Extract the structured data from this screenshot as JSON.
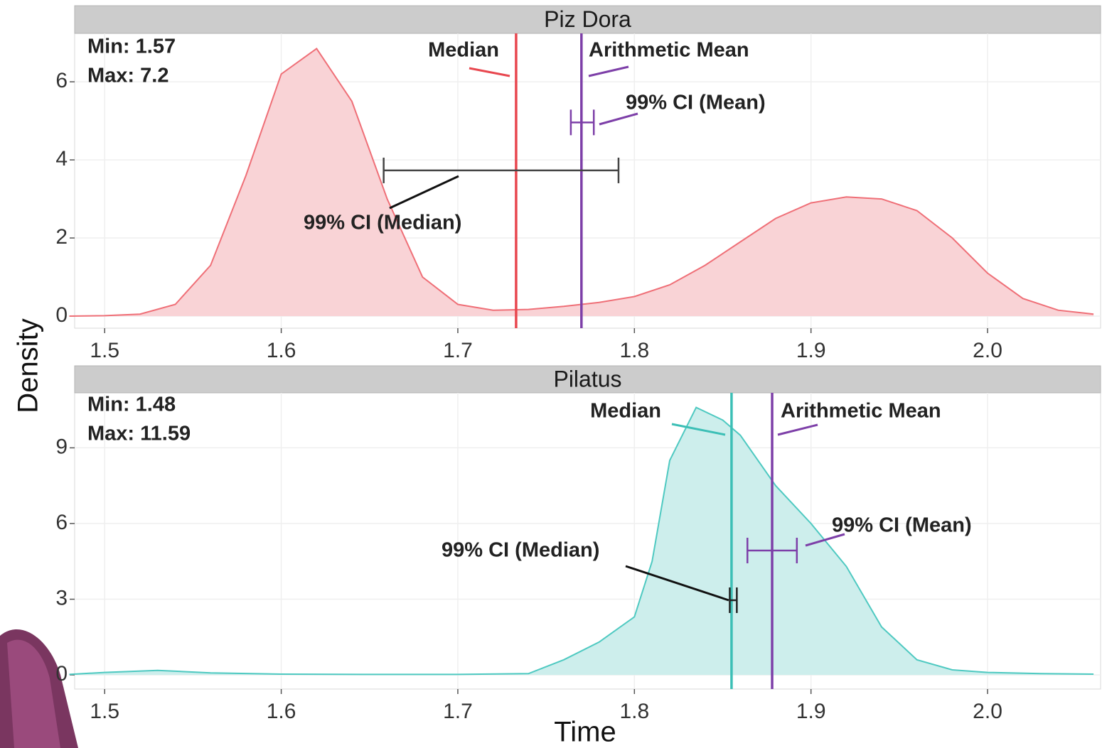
{
  "chart_data": [
    {
      "type": "area",
      "title": "Piz Dora",
      "ylabel": "Density",
      "x": [
        1.48,
        1.5,
        1.52,
        1.54,
        1.56,
        1.58,
        1.6,
        1.62,
        1.64,
        1.66,
        1.68,
        1.7,
        1.72,
        1.74,
        1.76,
        1.78,
        1.8,
        1.82,
        1.84,
        1.86,
        1.88,
        1.9,
        1.92,
        1.94,
        1.96,
        1.98,
        2.0,
        2.02,
        2.04,
        2.06
      ],
      "values": [
        0,
        0.01,
        0.05,
        0.3,
        1.3,
        3.6,
        6.2,
        6.85,
        5.5,
        3.0,
        1.0,
        0.3,
        0.15,
        0.17,
        0.25,
        0.35,
        0.5,
        0.8,
        1.3,
        1.9,
        2.5,
        2.9,
        3.05,
        3.0,
        2.7,
        2.0,
        1.1,
        0.45,
        0.15,
        0.05
      ],
      "color": "#ef6f77",
      "fill": "#f9d3d6",
      "xlim": [
        1.483,
        2.064
      ],
      "ylim": [
        -0.31,
        7.24
      ],
      "xticks": [
        1.5,
        1.6,
        1.7,
        1.8,
        1.9,
        {
          "value": 2,
          "label": "2.0"
        }
      ],
      "yticks": [
        0,
        2,
        4,
        6
      ],
      "grid": true,
      "annotations": [
        "Min: 1.57",
        "Max: 7.2"
      ],
      "markers": [
        {
          "name": "Median",
          "value": 1.733,
          "color": "#e8474f"
        },
        {
          "name": "Arithmetic Mean",
          "value": 1.77,
          "color": "#7d3fa8"
        }
      ],
      "intervals": [
        {
          "name": "99% CI (Median)",
          "low": 1.658,
          "high": 1.791,
          "y": 3.73,
          "color": "#444444",
          "label_color": "#111111"
        },
        {
          "name": "99% CI (Mean)",
          "low": 1.764,
          "high": 1.777,
          "y": 4.96,
          "color": "#7d3fa8",
          "label_color": "#7d3fa8"
        }
      ]
    },
    {
      "type": "area",
      "title": "Pilatus",
      "xlabel": "Time",
      "x": [
        1.48,
        1.5,
        1.53,
        1.56,
        1.6,
        1.65,
        1.7,
        1.74,
        1.76,
        1.78,
        1.8,
        1.81,
        1.82,
        1.835,
        1.85,
        1.86,
        1.88,
        1.9,
        1.92,
        1.94,
        1.96,
        1.98,
        2.0,
        2.03,
        2.06
      ],
      "values": [
        0.02,
        0.1,
        0.18,
        0.08,
        0.03,
        0.02,
        0.02,
        0.05,
        0.6,
        1.3,
        2.3,
        4.5,
        8.5,
        10.6,
        10.1,
        9.5,
        7.5,
        6.0,
        4.3,
        1.9,
        0.6,
        0.2,
        0.1,
        0.05,
        0.03
      ],
      "color": "#4ec9c1",
      "fill": "#cdeeec",
      "xlim": [
        1.483,
        2.064
      ],
      "ylim": [
        -0.56,
        11.18
      ],
      "xticks": [
        1.5,
        1.6,
        1.7,
        1.8,
        1.9,
        {
          "value": 2,
          "label": "2.0"
        }
      ],
      "yticks": [
        0,
        3,
        6,
        9
      ],
      "grid": true,
      "annotations": [
        "Min: 1.48",
        "Max: 11.59"
      ],
      "markers": [
        {
          "name": "Median",
          "value": 1.855,
          "color": "#3cbfb6"
        },
        {
          "name": "Arithmetic Mean",
          "value": 1.878,
          "color": "#7d3fa8"
        }
      ],
      "intervals": [
        {
          "name": "99% CI (Median)",
          "low": 1.854,
          "high": 1.858,
          "y": 2.96,
          "color": "#222222",
          "label_color": "#111111"
        },
        {
          "name": "99% CI (Mean)",
          "low": 1.864,
          "high": 1.892,
          "y": 4.93,
          "color": "#7d3fa8",
          "label_color": "#7d3fa8"
        }
      ]
    }
  ]
}
